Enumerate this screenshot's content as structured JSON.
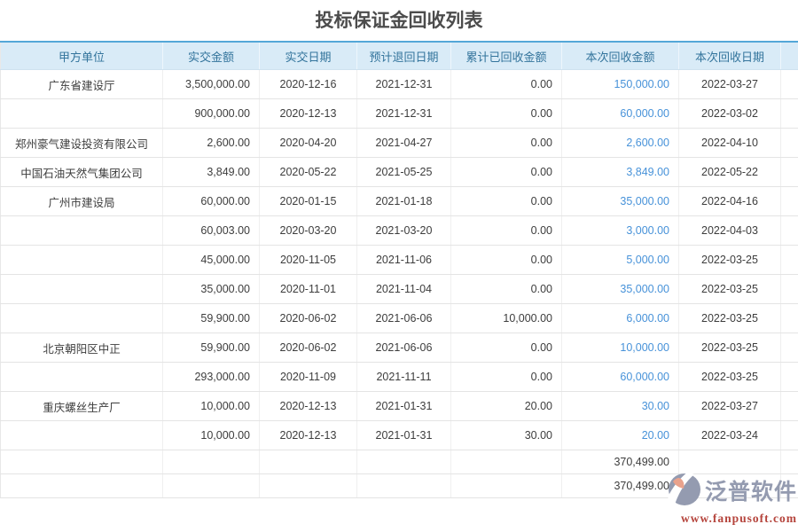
{
  "page": {
    "title": "投标保证金回收列表"
  },
  "table": {
    "headers": [
      "甲方单位",
      "实交金额",
      "实交日期",
      "预计退回日期",
      "累计已回收金额",
      "本次回收金额",
      "本次回收日期",
      ""
    ],
    "rows": [
      [
        "广东省建设厅",
        "3,500,000.00",
        "2020-12-16",
        "2021-12-31",
        "0.00",
        "150,000.00",
        "2022-03-27"
      ],
      [
        "",
        "900,000.00",
        "2020-12-13",
        "2021-12-31",
        "0.00",
        "60,000.00",
        "2022-03-02"
      ],
      [
        "郑州豪气建设投资有限公司",
        "2,600.00",
        "2020-04-20",
        "2021-04-27",
        "0.00",
        "2,600.00",
        "2022-04-10"
      ],
      [
        "中国石油天然气集团公司",
        "3,849.00",
        "2020-05-22",
        "2021-05-25",
        "0.00",
        "3,849.00",
        "2022-05-22"
      ],
      [
        "广州市建设局",
        "60,000.00",
        "2020-01-15",
        "2021-01-18",
        "0.00",
        "35,000.00",
        "2022-04-16"
      ],
      [
        "",
        "60,003.00",
        "2020-03-20",
        "2021-03-20",
        "0.00",
        "3,000.00",
        "2022-04-03"
      ],
      [
        "",
        "45,000.00",
        "2020-11-05",
        "2021-11-06",
        "0.00",
        "5,000.00",
        "2022-03-25"
      ],
      [
        "",
        "35,000.00",
        "2020-11-01",
        "2021-11-04",
        "0.00",
        "35,000.00",
        "2022-03-25"
      ],
      [
        "",
        "59,900.00",
        "2020-06-02",
        "2021-06-06",
        "10,000.00",
        "6,000.00",
        "2022-03-25"
      ],
      [
        "北京朝阳区中正",
        "59,900.00",
        "2020-06-02",
        "2021-06-06",
        "0.00",
        "10,000.00",
        "2022-03-25"
      ],
      [
        "",
        "293,000.00",
        "2020-11-09",
        "2021-11-11",
        "0.00",
        "60,000.00",
        "2022-03-25"
      ],
      [
        "重庆螺丝生产厂",
        "10,000.00",
        "2020-12-13",
        "2021-01-31",
        "20.00",
        "30.00",
        "2022-03-27"
      ],
      [
        "",
        "10,000.00",
        "2020-12-13",
        "2021-01-31",
        "30.00",
        "20.00",
        "2022-03-24"
      ]
    ],
    "totals": [
      "370,499.00",
      "370,499.00"
    ]
  },
  "watermark": {
    "brand": "泛普软件",
    "url": "www.fanpusoft.com"
  },
  "colors": {
    "header_bg": "#d9ebf7",
    "header_text": "#33749c",
    "header_top_border": "#54a7d8",
    "link_blue": "#4792d9",
    "body_text": "#3d3d3d",
    "watermark_gray": "#949bb0",
    "watermark_red": "#b5443c"
  }
}
